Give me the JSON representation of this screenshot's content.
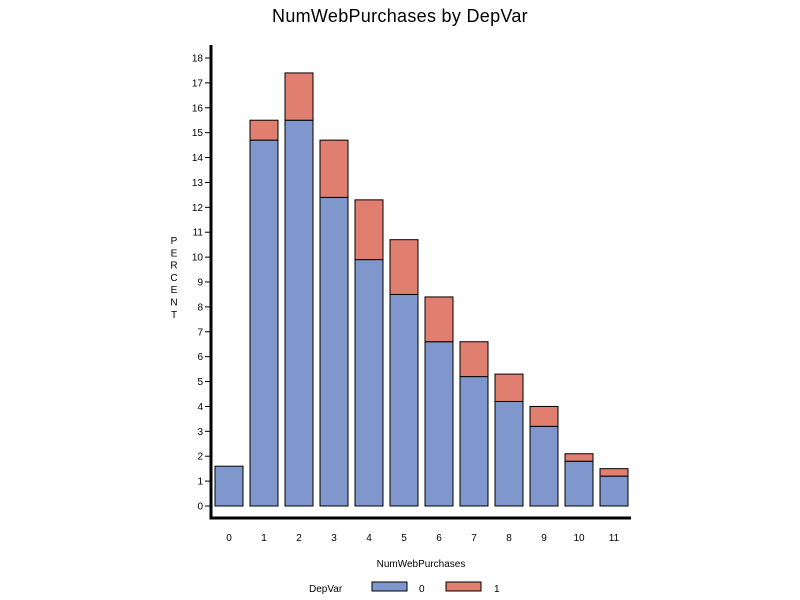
{
  "chart_data": {
    "type": "bar",
    "stacked": true,
    "title": "NumWebPurchases by DepVar",
    "xlabel": "NumWebPurchases",
    "ylabel": "PERCENT",
    "categories": [
      "0",
      "1",
      "2",
      "3",
      "4",
      "5",
      "6",
      "7",
      "8",
      "9",
      "10",
      "11"
    ],
    "series": [
      {
        "name": "0",
        "color": "#7f97cc",
        "values": [
          1.6,
          14.7,
          15.5,
          12.4,
          9.9,
          8.5,
          6.6,
          5.2,
          4.2,
          3.2,
          1.8,
          1.2
        ]
      },
      {
        "name": "1",
        "color": "#e07f70",
        "values": [
          0.0,
          0.8,
          1.9,
          2.3,
          2.4,
          2.2,
          1.8,
          1.4,
          1.1,
          0.8,
          0.3,
          0.3
        ]
      }
    ],
    "ylim": [
      0,
      18
    ],
    "yticks": [
      0,
      1,
      2,
      3,
      4,
      5,
      6,
      7,
      8,
      9,
      10,
      11,
      12,
      13,
      14,
      15,
      16,
      17,
      18
    ],
    "grid": false,
    "legend": {
      "title": "DepVar",
      "position": "bottom-center"
    }
  }
}
